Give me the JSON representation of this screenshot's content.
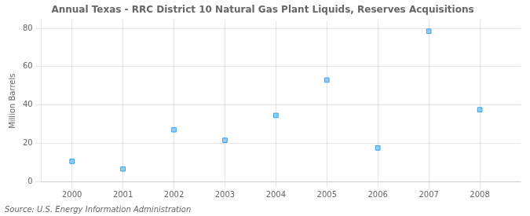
{
  "chart_data": {
    "type": "scatter",
    "title": "Annual Texas - RRC District 10 Natural Gas Plant Liquids, Reserves Acquisitions",
    "ylabel": "Million Barrels",
    "annotations": [
      "Source: U.S. Energy Information Administration"
    ],
    "x": [
      2000,
      2001,
      2002,
      2003,
      2004,
      2005,
      2006,
      2007,
      2008
    ],
    "values": [
      10.5,
      6.5,
      27.0,
      21.5,
      34.5,
      53.0,
      17.5,
      78.5,
      37.5
    ],
    "xlim": [
      1999.4,
      2008.8
    ],
    "xticks": [
      2000,
      2001,
      2002,
      2003,
      2004,
      2005,
      2006,
      2007,
      2008
    ],
    "ylim": [
      0,
      84
    ],
    "yticks": [
      0,
      20,
      40,
      60,
      80
    ],
    "marker": "square",
    "grid": true
  }
}
